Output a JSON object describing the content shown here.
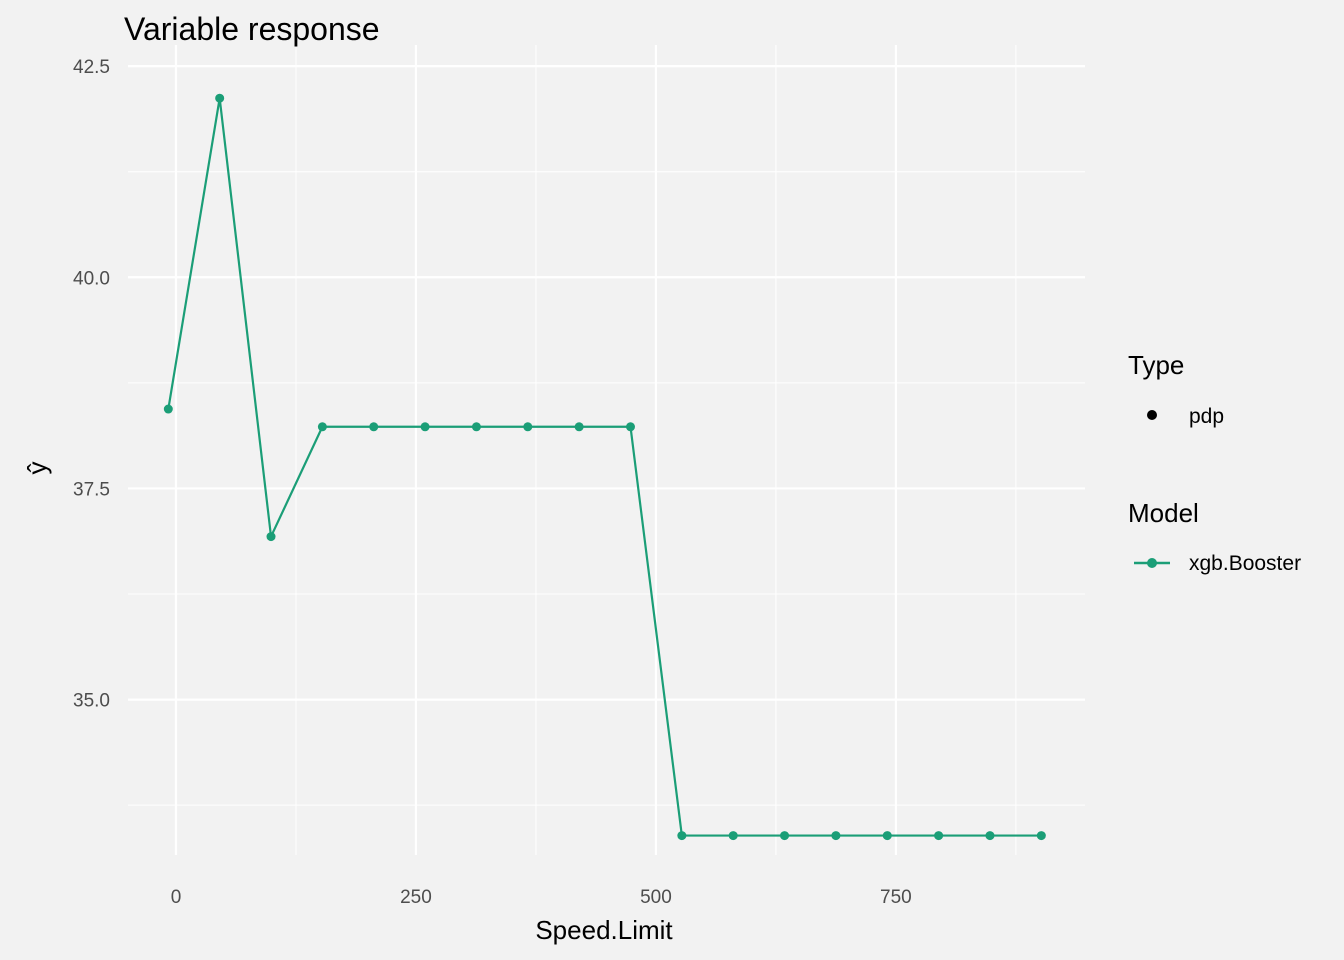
{
  "chart_data": {
    "type": "line",
    "title": "Variable response",
    "xlabel": "Speed.Limit",
    "ylabel": "ŷ",
    "xlim": [
      -50,
      947
    ],
    "ylim": [
      33.16,
      42.75
    ],
    "x_ticks": [
      0,
      250,
      500,
      750
    ],
    "x_tick_labels": [
      "0",
      "250",
      "500",
      "750"
    ],
    "x_minor": [
      125,
      375,
      625,
      875
    ],
    "y_ticks": [
      35.0,
      37.5,
      40.0,
      42.5
    ],
    "y_tick_labels": [
      "35.0",
      "37.5",
      "40.0",
      "42.5"
    ],
    "y_minor": [
      33.75,
      36.25,
      38.75,
      41.25
    ],
    "grid": true,
    "legend_placement": "right",
    "series": [
      {
        "name": "xgb.Booster",
        "color": "#1b9e77",
        "x": [
          -8,
          45.5,
          99,
          152.5,
          206,
          259.5,
          313,
          366.5,
          420,
          473.5,
          527,
          580.5,
          634,
          687.5,
          741,
          794.5,
          848,
          901.5
        ],
        "y": [
          38.44,
          42.12,
          36.93,
          38.23,
          38.23,
          38.23,
          38.23,
          38.23,
          38.23,
          38.23,
          33.39,
          33.39,
          33.39,
          33.39,
          33.39,
          33.39,
          33.39,
          33.39
        ]
      }
    ],
    "legend": {
      "type_title": "Type",
      "type_entries": [
        "pdp"
      ],
      "model_title": "Model",
      "model_entries": [
        "xgb.Booster"
      ]
    }
  }
}
